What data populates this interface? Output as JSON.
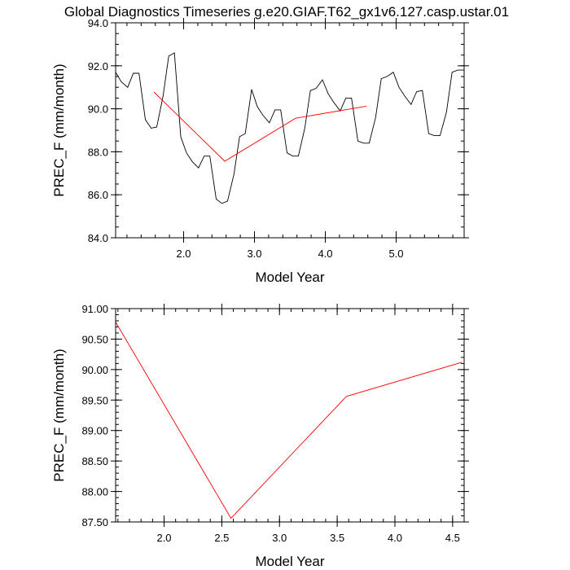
{
  "page": {
    "title": "Global Diagnostics Timeseries g.e20.GIAF.T62_gx1v6.127.casp.ustar.01"
  },
  "chart_data": [
    {
      "type": "line",
      "xlabel": "Model Year",
      "ylabel": "PREC_F (mm/month)",
      "xlim": [
        1.04,
        5.96
      ],
      "ylim": [
        84.0,
        94.0
      ],
      "xticks": [
        "2.0",
        "3.0",
        "4.0",
        "5.0"
      ],
      "xtick_values": [
        2,
        3,
        4,
        5
      ],
      "yticks": [
        "84.0",
        "86.0",
        "88.0",
        "90.0",
        "92.0",
        "94.0"
      ],
      "ytick_values": [
        84,
        86,
        88,
        90,
        92,
        94
      ],
      "series": [
        {
          "color": "#000000",
          "x": [
            1.04,
            1.12,
            1.21,
            1.29,
            1.37,
            1.46,
            1.54,
            1.62,
            1.71,
            1.79,
            1.87,
            1.96,
            2.04,
            2.12,
            2.21,
            2.29,
            2.37,
            2.46,
            2.54,
            2.62,
            2.71,
            2.79,
            2.87,
            2.96,
            3.04,
            3.12,
            3.21,
            3.29,
            3.37,
            3.46,
            3.54,
            3.62,
            3.71,
            3.79,
            3.87,
            3.96,
            4.04,
            4.12,
            4.21,
            4.29,
            4.37,
            4.46,
            4.54,
            4.62,
            4.71,
            4.79,
            4.87,
            4.96,
            5.04,
            5.12,
            5.21,
            5.29,
            5.37,
            5.46,
            5.54,
            5.62,
            5.71,
            5.79,
            5.87,
            5.96
          ],
          "y": [
            91.7,
            91.25,
            91.0,
            91.65,
            91.65,
            89.5,
            89.1,
            89.15,
            90.6,
            92.45,
            92.6,
            88.7,
            87.95,
            87.55,
            87.25,
            87.8,
            87.8,
            85.8,
            85.6,
            85.7,
            86.95,
            88.7,
            88.85,
            90.9,
            90.1,
            89.7,
            89.35,
            89.95,
            89.95,
            87.95,
            87.8,
            87.8,
            89.1,
            90.85,
            90.95,
            91.35,
            90.7,
            90.3,
            89.9,
            90.5,
            90.5,
            88.5,
            88.4,
            88.4,
            89.6,
            91.4,
            91.5,
            91.7,
            91.0,
            90.6,
            90.2,
            90.8,
            90.85,
            88.85,
            88.75,
            88.75,
            89.85,
            91.7,
            91.8,
            91.8
          ]
        },
        {
          "color": "#ff0000",
          "x": [
            1.58,
            2.58,
            3.58,
            4.58
          ],
          "y": [
            90.78,
            87.56,
            89.56,
            90.12
          ]
        }
      ]
    },
    {
      "type": "line",
      "xlabel": "Model Year",
      "ylabel": "PREC_F (mm/month)",
      "xlim": [
        1.58,
        4.6
      ],
      "ylim": [
        87.5,
        91.0
      ],
      "xticks": [
        "2.0",
        "2.5",
        "3.0",
        "3.5",
        "4.0",
        "4.5"
      ],
      "xtick_values": [
        2.0,
        2.5,
        3.0,
        3.5,
        4.0,
        4.5
      ],
      "yticks": [
        "87.50",
        "88.00",
        "88.50",
        "89.00",
        "89.50",
        "90.00",
        "90.50",
        "91.00"
      ],
      "ytick_values": [
        87.5,
        88.0,
        88.5,
        89.0,
        89.5,
        90.0,
        90.5,
        91.0
      ],
      "series": [
        {
          "color": "#ff0000",
          "x": [
            1.58,
            2.58,
            3.58,
            4.58
          ],
          "y": [
            90.78,
            87.56,
            89.56,
            90.12
          ]
        }
      ]
    }
  ]
}
